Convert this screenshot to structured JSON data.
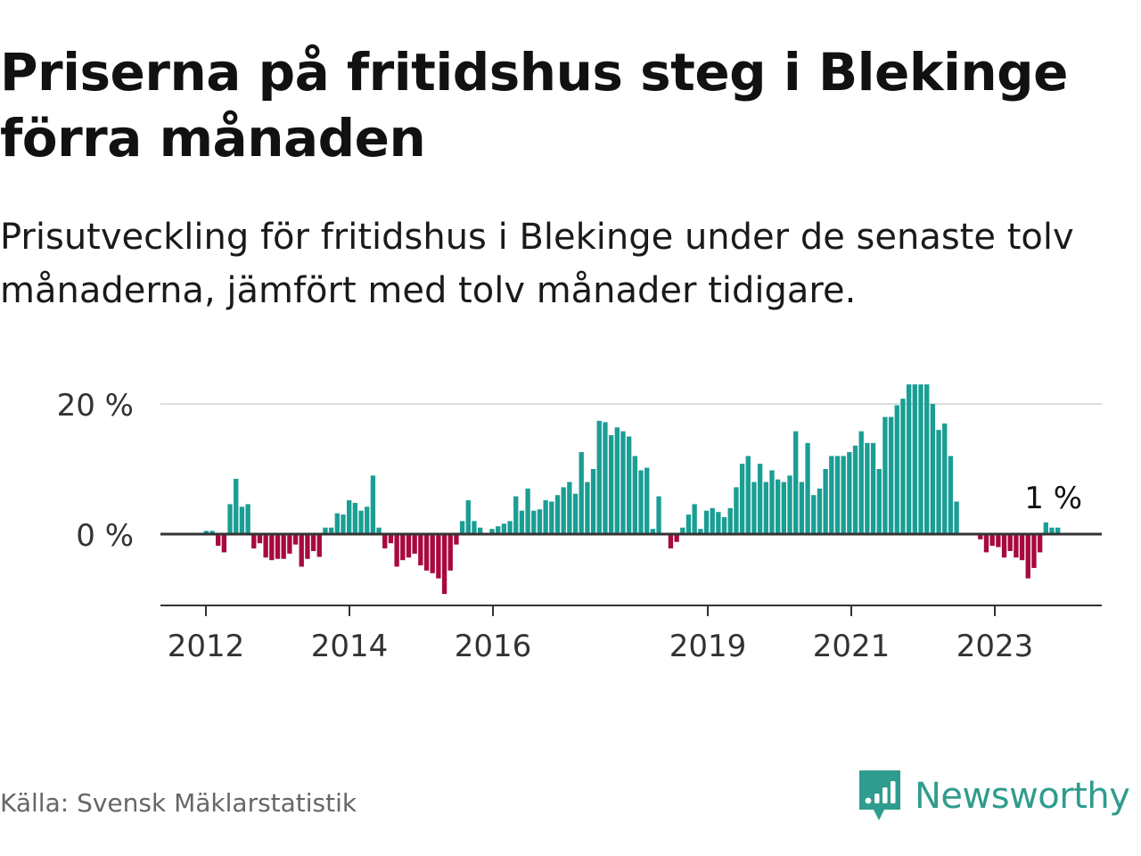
{
  "title": "Priserna på fritidshus steg i Blekinge förra månaden",
  "subtitle": "Prisutveckling för fritidshus i Blekinge under de senaste tolv månaderna, jämfört med tolv månader tidigare.",
  "source": "Källa: Svensk Mäklarstatistik",
  "brand": {
    "name": "Newsworthy",
    "icon": "newsworthy-logo-icon",
    "color": "#2e9c8e"
  },
  "colors": {
    "positive": "#1a9e94",
    "negative": "#a8093f",
    "gridline": "#dddddd",
    "axis": "#333333"
  },
  "chart_data": {
    "type": "bar",
    "x_start": "2011-01",
    "x_end": "2024-01",
    "x_ticks": [
      {
        "label": "2012",
        "date": "2012-01"
      },
      {
        "label": "2014",
        "date": "2014-01"
      },
      {
        "label": "2016",
        "date": "2016-01"
      },
      {
        "label": "2019",
        "date": "2019-01"
      },
      {
        "label": "2021",
        "date": "2021-01"
      },
      {
        "label": "2023",
        "date": "2023-01"
      }
    ],
    "y_ticks": [
      {
        "value": 0,
        "label": "0 %"
      },
      {
        "value": 20,
        "label": "20 %"
      }
    ],
    "ylim": [
      -11,
      23
    ],
    "y_unit": "%",
    "last_label": "1 %",
    "start_date": "2012-01",
    "values": [
      0.5,
      0.5,
      -1.8,
      -2.8,
      4.6,
      8.5,
      4.2,
      4.6,
      -2.2,
      -1.4,
      -3.6,
      -4.0,
      -3.8,
      -3.8,
      -3.0,
      -1.6,
      -5.0,
      -3.8,
      -2.6,
      -3.5,
      1.0,
      1.0,
      3.2,
      3.0,
      5.2,
      4.8,
      3.6,
      4.2,
      9.0,
      1.0,
      -2.2,
      -1.4,
      -5.0,
      -4.0,
      -3.6,
      -3.0,
      -4.8,
      -5.6,
      -6.0,
      -6.8,
      -9.2,
      -5.6,
      -1.6,
      2.0,
      5.2,
      2.0,
      1.0,
      0.2,
      0.8,
      1.2,
      1.6,
      2.0,
      5.8,
      3.6,
      7.0,
      3.6,
      3.8,
      5.2,
      5.0,
      6.0,
      7.2,
      8.0,
      6.2,
      12.6,
      8.0,
      10.0,
      17.4,
      17.2,
      15.2,
      16.4,
      15.8,
      15.0,
      12.0,
      9.8,
      10.2,
      0.8,
      5.8,
      -0.2,
      -2.2,
      -1.2,
      1.0,
      3.0,
      4.6,
      0.8,
      3.6,
      4.0,
      3.4,
      2.6,
      4.0,
      7.2,
      10.8,
      12.0,
      8.0,
      10.8,
      8.0,
      9.8,
      8.4,
      8.0,
      9.0,
      15.8,
      8.0,
      14.0,
      6.0,
      7.0,
      10.0,
      12.0,
      12.0,
      12.0,
      12.6,
      13.6,
      15.8,
      14.0,
      14.0,
      10.0,
      18.0,
      18.0,
      19.8,
      20.8,
      23.0,
      23.0,
      23.0,
      23.0,
      20.0,
      16.0,
      17.0,
      12.0,
      5.0,
      null,
      null,
      null,
      -0.8,
      -2.8,
      -1.8,
      -2.0,
      -3.6,
      -2.6,
      -3.6,
      -4.0,
      -6.8,
      -5.2,
      -2.8,
      1.8,
      1.0,
      1.0
    ]
  }
}
